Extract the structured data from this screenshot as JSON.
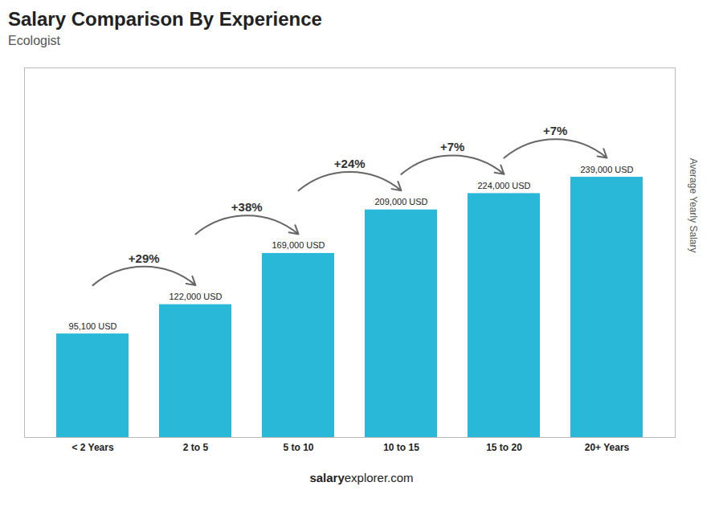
{
  "chart_data": {
    "type": "bar",
    "title": "Salary Comparison By Experience",
    "subtitle": "Ecologist",
    "ylabel": "Average Yearly Salary",
    "footer_bold": "salary",
    "footer_regular": "explorer.com",
    "categories": [
      "< 2 Years",
      "2 to 5",
      "5 to 10",
      "10 to 15",
      "15 to 20",
      "20+ Years"
    ],
    "values": [
      95100,
      122000,
      169000,
      209000,
      224000,
      239000
    ],
    "value_labels": [
      "95,100 USD",
      "122,000 USD",
      "169,000 USD",
      "209,000 USD",
      "224,000 USD",
      "239,000 USD"
    ],
    "data_labels": true,
    "annotations": [
      "+29%",
      "+38%",
      "+24%",
      "+7%",
      "+7%"
    ],
    "color": "#29b8d8",
    "ylim": [
      0,
      339380
    ],
    "yticks": [],
    "tick_labels": "x",
    "grid": false
  }
}
